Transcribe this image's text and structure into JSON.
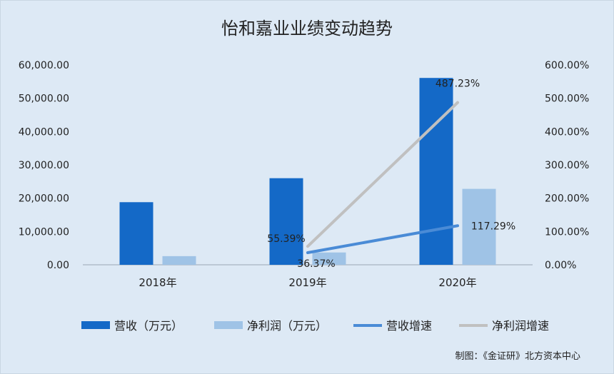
{
  "chart_data": {
    "type": "bar",
    "title": "怡和嘉业业绩变动趋势",
    "categories": [
      "2018年",
      "2019年",
      "2020年"
    ],
    "y_left": {
      "ylim": [
        0,
        60000
      ],
      "ticks": [
        "0.00",
        "10,000.00",
        "20,000.00",
        "30,000.00",
        "40,000.00",
        "50,000.00",
        "60,000.00"
      ]
    },
    "y_right": {
      "ylim": [
        0,
        600
      ],
      "ticks": [
        "0.00%",
        "100.00%",
        "200.00%",
        "300.00%",
        "400.00%",
        "500.00%",
        "600.00%"
      ]
    },
    "series": [
      {
        "name": "营收（万元）",
        "kind": "bar",
        "axis": "left",
        "color": "#1469c7",
        "values": [
          18800,
          26000,
          56100
        ]
      },
      {
        "name": "净利润（万元）",
        "kind": "bar",
        "axis": "left",
        "color": "#9fc3e6",
        "values": [
          2600,
          3700,
          22800
        ]
      },
      {
        "name": "营收增速",
        "kind": "line",
        "axis": "right",
        "color": "#4a8bd6",
        "values": [
          null,
          36.37,
          117.29
        ],
        "labels": [
          null,
          "36.37%",
          "117.29%"
        ]
      },
      {
        "name": "净利润增速",
        "kind": "line",
        "axis": "right",
        "color": "#c0c0c0",
        "values": [
          null,
          55.39,
          487.23
        ],
        "labels": [
          null,
          "55.39%",
          "487.23%"
        ]
      }
    ],
    "grid": false,
    "legend": "bottom"
  },
  "footer": {
    "source": "制图：《金证研》北方资本中心"
  }
}
